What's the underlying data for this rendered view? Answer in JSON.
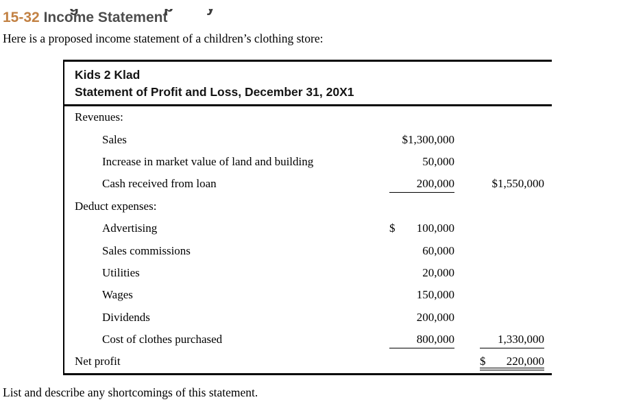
{
  "page": {
    "top_fragments": [
      "g",
      "p",
      "y"
    ],
    "problem_number": "15-32",
    "problem_title": "Income Statement",
    "intro": "Here is a proposed income statement of a children’s clothing store:",
    "footer": "List and describe any shortcomings of this statement."
  },
  "colors": {
    "problem_number_accent": "#c28143",
    "problem_title_gray": "#4d4d4d",
    "rule_black": "#000000"
  },
  "statement": {
    "company": "Kids 2 Klad",
    "title": "Statement of Profit and Loss, December 31, 20X1",
    "rows": [
      {
        "label": "Revenues:",
        "indent": 0
      },
      {
        "label": "Sales",
        "indent": 1,
        "col1": "$1,300,000"
      },
      {
        "label": "Increase in market value of land and building",
        "indent": 1,
        "col1": "50,000"
      },
      {
        "label": "Cash received from loan",
        "indent": 1,
        "col1": "200,000",
        "col1_ul": true,
        "col2": "$1,550,000"
      },
      {
        "label": "Deduct expenses:",
        "indent": 0
      },
      {
        "label": "Advertising",
        "indent": 1,
        "col1": "100,000",
        "col1_dollar": "$"
      },
      {
        "label": "Sales commissions",
        "indent": 1,
        "col1": "60,000"
      },
      {
        "label": "Utilities",
        "indent": 1,
        "col1": "20,000"
      },
      {
        "label": "Wages",
        "indent": 1,
        "col1": "150,000"
      },
      {
        "label": "Dividends",
        "indent": 1,
        "col1": "200,000"
      },
      {
        "label": "Cost of clothes purchased",
        "indent": 1,
        "col1": "800,000",
        "col1_ul": true,
        "col2": "1,330,000",
        "col2_ul": true
      },
      {
        "label": "Net profit",
        "indent": 0,
        "col2": "220,000",
        "col2_dollar": "$",
        "col2_dul": true
      }
    ]
  }
}
